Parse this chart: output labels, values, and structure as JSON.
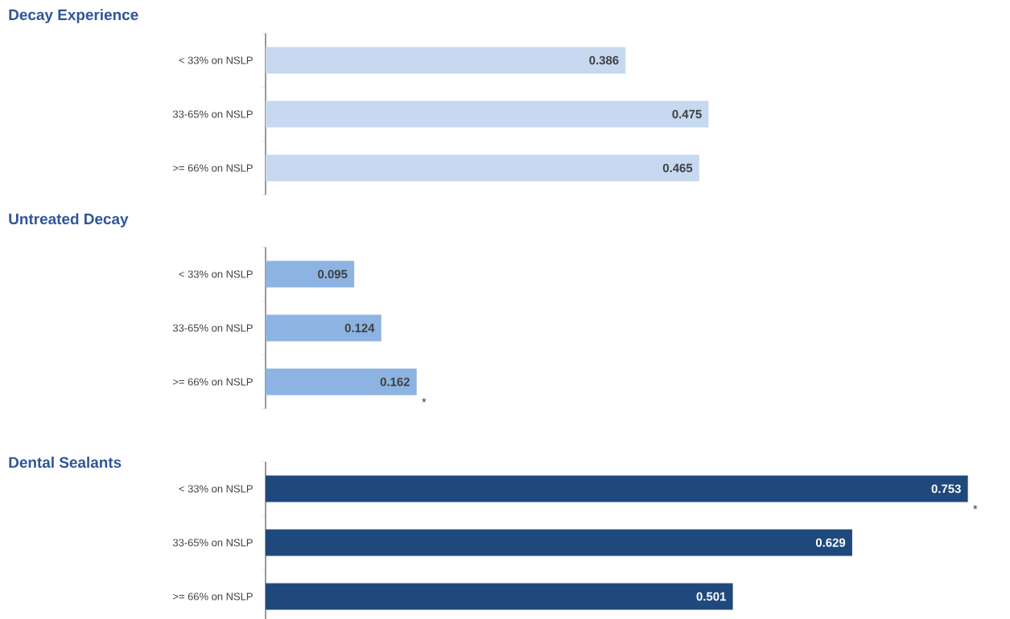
{
  "chart_data": [
    {
      "type": "bar",
      "orientation": "horizontal",
      "title": "Decay Experience",
      "categories": [
        "< 33% on NSLP",
        "33-65% on NSLP",
        ">= 66% on NSLP"
      ],
      "values": [
        0.386,
        0.475,
        0.465
      ],
      "color": "#c6d9f0",
      "data_labels": true
    },
    {
      "type": "bar",
      "orientation": "horizontal",
      "title": "Untreated Decay",
      "categories": [
        "< 33% on NSLP",
        "33-65% on NSLP",
        ">= 66% on NSLP"
      ],
      "values": [
        0.095,
        0.124,
        0.162
      ],
      "color": "#8db3e2",
      "data_labels": true,
      "annotations": [
        {
          "text": "*",
          "x": 0.162,
          "y": ">= 66% on NSLP"
        }
      ]
    },
    {
      "type": "bar",
      "orientation": "horizontal",
      "title": "Dental Sealants",
      "categories": [
        "< 33% on NSLP",
        "33-65% on NSLP",
        ">= 66% on NSLP"
      ],
      "values": [
        0.753,
        0.629,
        0.501
      ],
      "color": "#1f497d",
      "data_labels": true,
      "annotations": [
        {
          "text": "*",
          "x": 0.753,
          "y": "< 33% on NSLP"
        }
      ]
    }
  ]
}
